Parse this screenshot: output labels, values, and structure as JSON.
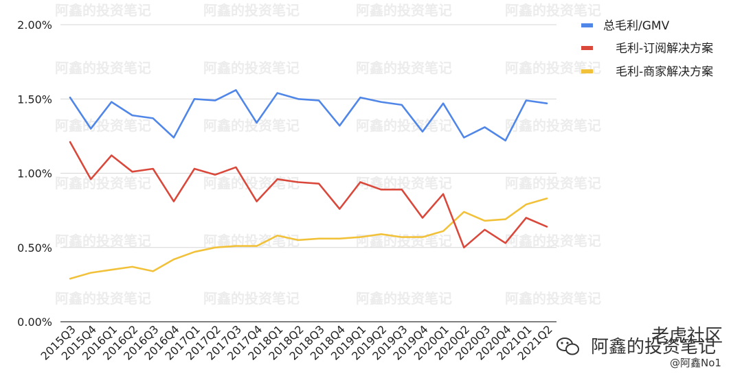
{
  "watermark": "阿鑫的投资笔记",
  "brand": {
    "main": "阿鑫的投资笔记",
    "overlay": "老虎社区",
    "handle": "@阿鑫No1",
    "icon": "wechat-icon"
  },
  "chart_data": {
    "type": "line",
    "title": "",
    "xlabel": "",
    "ylabel": "",
    "ylim": [
      0,
      0.02
    ],
    "yticks": [
      "0.00%",
      "0.50%",
      "1.00%",
      "1.50%",
      "2.00%"
    ],
    "grid": true,
    "legend_position": "top-right",
    "categories": [
      "2015Q3",
      "2015Q4",
      "2016Q1",
      "2016Q2",
      "2016Q3",
      "2016Q4",
      "2017Q1",
      "2017Q2",
      "2017Q3",
      "2017Q4",
      "2018Q1",
      "2018Q2",
      "2018Q3",
      "2018Q4",
      "2019Q1",
      "2019Q2",
      "2019Q3",
      "2019Q4",
      "2020Q1",
      "2020Q2",
      "2020Q3",
      "2020Q4",
      "2021Q1",
      "2021Q2"
    ],
    "series": [
      {
        "name": "总毛利/GMV",
        "color": "#4f86e8",
        "values": [
          0.0151,
          0.013,
          0.0148,
          0.0139,
          0.0137,
          0.0124,
          0.015,
          0.0149,
          0.0156,
          0.0134,
          0.0154,
          0.015,
          0.0149,
          0.0132,
          0.0151,
          0.0148,
          0.0146,
          0.0128,
          0.0147,
          0.0124,
          0.0131,
          0.0122,
          0.0149,
          0.0147
        ]
      },
      {
        "name": "毛利-订阅解决方案",
        "color": "#d9483b",
        "values": [
          0.0121,
          0.0096,
          0.0112,
          0.0101,
          0.0103,
          0.0081,
          0.0103,
          0.0099,
          0.0104,
          0.0081,
          0.0096,
          0.0094,
          0.0093,
          0.0076,
          0.0094,
          0.0089,
          0.0089,
          0.007,
          0.0086,
          0.005,
          0.0062,
          0.0053,
          0.007,
          0.0064
        ]
      },
      {
        "name": "毛利-商家解决方案",
        "color": "#f2c13a",
        "values": [
          0.0029,
          0.0033,
          0.0035,
          0.0037,
          0.0034,
          0.0042,
          0.0047,
          0.005,
          0.0051,
          0.0051,
          0.0058,
          0.0055,
          0.0056,
          0.0056,
          0.0057,
          0.0059,
          0.0057,
          0.0057,
          0.0061,
          0.0074,
          0.0068,
          0.0069,
          0.0079,
          0.0083
        ]
      }
    ]
  }
}
